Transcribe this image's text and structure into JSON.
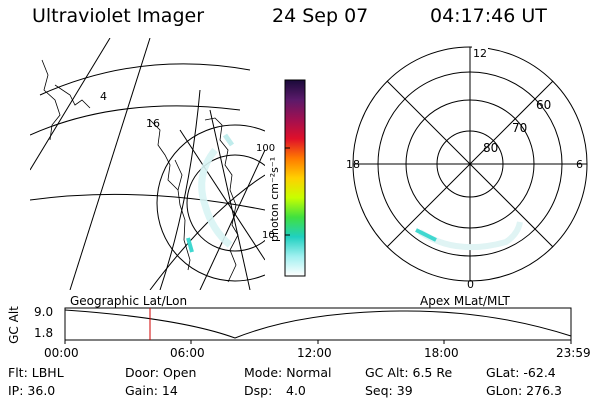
{
  "header": {
    "title": "Ultraviolet Imager",
    "date": "24 Sep 07",
    "time": "04:17:46 UT"
  },
  "geo_map": {
    "labels": [
      "4",
      "16"
    ]
  },
  "colorbar": {
    "label": "photon cm⁻²s⁻¹",
    "ticks": [
      "100",
      "10"
    ],
    "stops": [
      "#1a0a3a",
      "#5a1a6a",
      "#a01050",
      "#e0102a",
      "#ff7a00",
      "#ffd000",
      "#c8ff00",
      "#40e040",
      "#20d0c0",
      "#a0f0f0",
      "#ffffff"
    ]
  },
  "polar": {
    "mlt_labels": {
      "top": "12",
      "left": "18",
      "right": "6",
      "bottom": "0"
    },
    "lat_labels": [
      "60",
      "70",
      "80"
    ]
  },
  "orbit": {
    "y_axis_label": "GC Alt",
    "y_max": "9.0",
    "y_min": "1.8",
    "left_caption": "Geographic Lat/Lon",
    "right_caption": "Apex MLat/MLT",
    "x_ticks": [
      "00:00",
      "06:00",
      "12:00",
      "18:00",
      "23:59"
    ],
    "current_time_marker_color": "#d00000"
  },
  "info": {
    "flt": "Flt: LBHL",
    "ip": "IP: 36.0",
    "door": "Door: Open",
    "gain": "Gain: 14",
    "mode": "Mode: Normal",
    "dsp_label": "Dsp:",
    "dsp_value": "4.0",
    "gc_alt": "GC Alt: 6.5 Re",
    "seq": "Seq: 39",
    "glat": "GLat: -62.4",
    "glon": "GLon: 276.3"
  }
}
